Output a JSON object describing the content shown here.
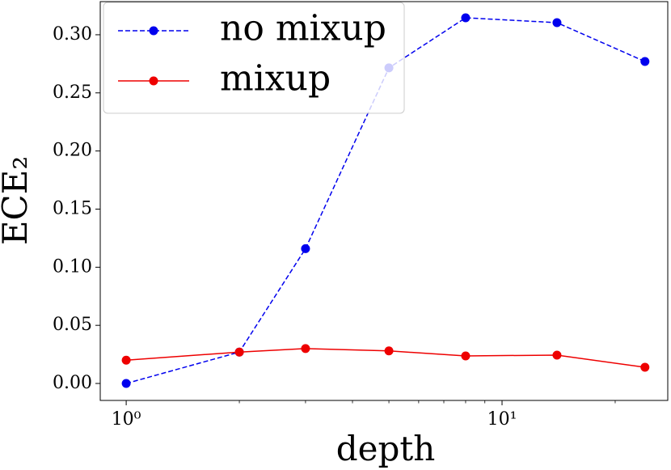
{
  "chart_data": {
    "type": "line",
    "x_label": "depth",
    "y_label": "ECE₂",
    "xscale": "log",
    "x": [
      1,
      2,
      3,
      5,
      8,
      14,
      24
    ],
    "series": [
      {
        "name": "no mixup",
        "color": "#0000ee",
        "linestyle": "dashed",
        "values": [
          0.0,
          0.027,
          0.116,
          0.2715,
          0.3146,
          0.3104,
          0.277
        ]
      },
      {
        "name": "mixup",
        "color": "#ee0000",
        "linestyle": "solid",
        "values": [
          0.02,
          0.027,
          0.03,
          0.028,
          0.0237,
          0.0244,
          0.0139
        ]
      }
    ],
    "xlim": [
      0.853,
      27.6
    ],
    "ylim": [
      -0.0146,
      0.3285
    ],
    "xticks": [
      {
        "value": 1,
        "label": "10⁰"
      },
      {
        "value": 10,
        "label": "10¹"
      }
    ],
    "xminorticks": [
      2,
      3,
      4,
      5,
      6,
      7,
      8,
      9,
      20
    ],
    "yticks": [
      {
        "value": 0,
        "label": "0.00"
      },
      {
        "value": 0.05,
        "label": "0.05"
      },
      {
        "value": 0.1,
        "label": "0.10"
      },
      {
        "value": 0.15,
        "label": "0.15"
      },
      {
        "value": 0.2,
        "label": "0.20"
      },
      {
        "value": 0.25,
        "label": "0.25"
      },
      {
        "value": 0.3,
        "label": "0.30"
      }
    ],
    "legend": "upper left",
    "grid": false
  }
}
